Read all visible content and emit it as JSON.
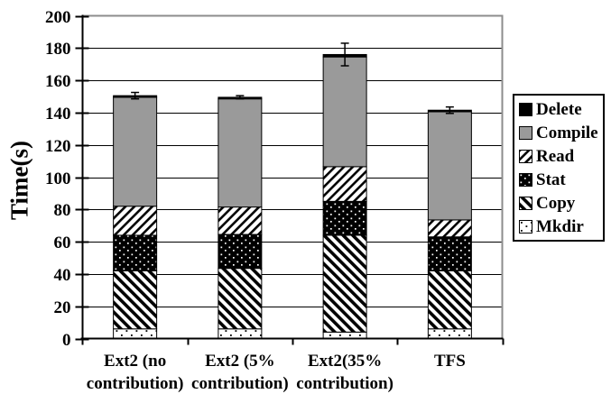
{
  "chart_data": {
    "type": "bar",
    "stacked": true,
    "title": "",
    "xlabel": "",
    "ylabel": "Time(s)",
    "categories": [
      "Ext2 (no\ncontribution)",
      "Ext2 (5%\ncontribution)",
      "Ext2(35%\ncontribution)",
      "TFS"
    ],
    "series": [
      {
        "name": "Mkdir",
        "fill": "dots-white",
        "values": [
          6,
          6,
          4,
          6
        ]
      },
      {
        "name": "Copy",
        "fill": "diag-back",
        "values": [
          36,
          37.5,
          60,
          36
        ]
      },
      {
        "name": "Stat",
        "fill": "dots-black",
        "values": [
          22,
          21,
          21,
          21
        ]
      },
      {
        "name": "Read",
        "fill": "diag-fwd",
        "values": [
          18,
          17,
          21.5,
          10.5
        ]
      },
      {
        "name": "Compile",
        "fill": "solid-gray",
        "values": [
          67.5,
          67,
          68,
          67
        ]
      },
      {
        "name": "Delete",
        "fill": "solid-black",
        "values": [
          1,
          1,
          1.5,
          1
        ]
      }
    ],
    "totals": [
      150.5,
      149.5,
      176,
      141.5
    ],
    "error_bars": [
      2,
      1,
      7,
      2
    ],
    "ylim": [
      0,
      200
    ],
    "yticks": [
      0,
      20,
      40,
      60,
      80,
      100,
      120,
      140,
      160,
      180,
      200
    ],
    "grid": true,
    "legend_position": "right",
    "legend": {
      "items": [
        {
          "label": "Delete",
          "fill": "solid-black"
        },
        {
          "label": "Compile",
          "fill": "solid-gray"
        },
        {
          "label": "Read",
          "fill": "diag-fwd"
        },
        {
          "label": "Stat",
          "fill": "dots-black"
        },
        {
          "label": "Copy",
          "fill": "diag-back"
        },
        {
          "label": "Mkdir",
          "fill": "dots-white"
        }
      ]
    },
    "colors": {
      "bar_gray": "#9A9A9A",
      "black": "#000000",
      "plot_border_gray": "#8C8C8C",
      "background": "#FFFFFF"
    }
  }
}
